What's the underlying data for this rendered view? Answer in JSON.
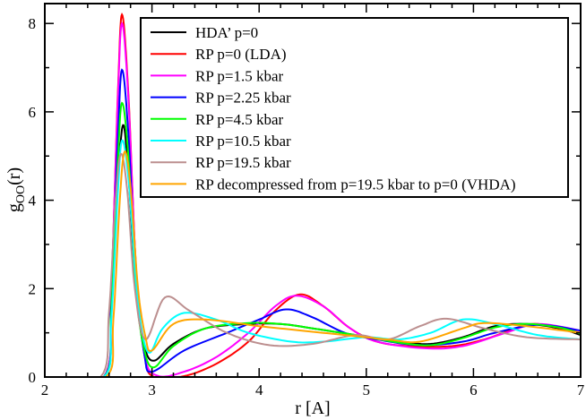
{
  "chart_data": {
    "type": "line",
    "xlabel": "r [A]",
    "ylabel_main": "g",
    "ylabel_sub": "OO",
    "ylabel_tail": "(r)",
    "xlim": [
      2,
      7
    ],
    "ylim": [
      0,
      8.45
    ],
    "xticks": [
      2,
      3,
      4,
      5,
      6,
      7
    ],
    "yticks": [
      0,
      2,
      4,
      6,
      8
    ],
    "grid": false,
    "legend_position": "top-right",
    "series": [
      {
        "name": "HDA’ p=0",
        "color": "#000000",
        "x": [
          2.0,
          2.55,
          2.62,
          2.68,
          2.73,
          2.78,
          2.85,
          2.93,
          3.02,
          3.2,
          3.5,
          3.9,
          4.2,
          4.5,
          4.9,
          5.3,
          5.6,
          5.9,
          6.2,
          6.5,
          6.8,
          7.0
        ],
        "y": [
          0,
          0,
          1.4,
          4.3,
          5.7,
          4.6,
          2.0,
          0.7,
          0.37,
          0.75,
          1.1,
          1.2,
          1.2,
          1.1,
          0.95,
          0.8,
          0.75,
          0.9,
          1.15,
          1.2,
          1.1,
          0.95
        ]
      },
      {
        "name": "RP p=0 (LDA)",
        "color": "#ff0000",
        "x": [
          2.0,
          2.55,
          2.62,
          2.68,
          2.72,
          2.78,
          2.85,
          2.93,
          3.02,
          3.3,
          3.6,
          3.9,
          4.15,
          4.38,
          4.6,
          4.85,
          5.1,
          5.4,
          5.8,
          6.1,
          6.4,
          6.6,
          7.0
        ],
        "y": [
          0,
          0,
          2.0,
          6.3,
          8.2,
          6.4,
          2.5,
          0.5,
          0.0,
          0.02,
          0.3,
          0.8,
          1.5,
          1.87,
          1.6,
          1.1,
          0.8,
          0.7,
          0.7,
          0.85,
          1.1,
          1.2,
          1.0
        ]
      },
      {
        "name": "RP p=1.5 kbar",
        "color": "#ff00ff",
        "x": [
          2.0,
          2.55,
          2.62,
          2.68,
          2.72,
          2.78,
          2.85,
          2.93,
          3.05,
          3.3,
          3.6,
          3.9,
          4.15,
          4.35,
          4.6,
          4.85,
          5.1,
          5.55,
          5.9,
          6.3,
          6.6,
          7.0
        ],
        "y": [
          0,
          0,
          2.0,
          6.2,
          8.0,
          6.3,
          2.5,
          0.5,
          0.03,
          0.12,
          0.45,
          1.0,
          1.6,
          1.84,
          1.6,
          1.1,
          0.8,
          0.65,
          0.7,
          1.0,
          1.2,
          1.05
        ]
      },
      {
        "name": "RP p=2.25 kbar",
        "color": "#0000ff",
        "x": [
          2.0,
          2.55,
          2.62,
          2.68,
          2.72,
          2.78,
          2.85,
          2.93,
          3.0,
          3.3,
          3.7,
          4.0,
          4.25,
          4.5,
          4.8,
          5.1,
          5.5,
          5.9,
          6.2,
          6.6,
          7.0
        ],
        "y": [
          0,
          0,
          1.7,
          5.3,
          6.95,
          5.5,
          2.2,
          0.5,
          0.12,
          0.6,
          1.0,
          1.3,
          1.53,
          1.35,
          1.0,
          0.85,
          0.72,
          0.8,
          1.0,
          1.18,
          1.05
        ]
      },
      {
        "name": "RP p=4.5 kbar",
        "color": "#00ff00",
        "x": [
          2.0,
          2.55,
          2.62,
          2.68,
          2.72,
          2.78,
          2.85,
          2.93,
          3.02,
          3.2,
          3.5,
          3.9,
          4.2,
          4.5,
          4.9,
          5.3,
          5.6,
          5.9,
          6.2,
          6.5,
          6.8,
          7.0
        ],
        "y": [
          0,
          0,
          1.5,
          4.8,
          6.2,
          5.0,
          2.0,
          0.6,
          0.22,
          0.7,
          1.1,
          1.22,
          1.2,
          1.1,
          0.95,
          0.78,
          0.72,
          0.88,
          1.12,
          1.2,
          1.12,
          0.98
        ]
      },
      {
        "name": "RP p=10.5 kbar",
        "color": "#00ffff",
        "x": [
          2.0,
          2.55,
          2.62,
          2.68,
          2.72,
          2.78,
          2.85,
          2.91,
          2.98,
          3.1,
          3.3,
          3.6,
          3.9,
          4.3,
          4.6,
          5.0,
          5.3,
          5.6,
          5.9,
          6.2,
          6.6,
          7.0
        ],
        "y": [
          0,
          0,
          1.3,
          4.1,
          5.35,
          4.5,
          2.2,
          1.0,
          0.55,
          1.1,
          1.45,
          1.3,
          1.0,
          0.8,
          0.8,
          0.9,
          0.85,
          1.0,
          1.3,
          1.2,
          0.95,
          0.85
        ]
      },
      {
        "name": "RP p=19.5 kbar",
        "color": "#bc8f8f",
        "x": [
          2.0,
          2.52,
          2.6,
          2.66,
          2.71,
          2.77,
          2.84,
          2.94,
          3.12,
          3.35,
          3.7,
          4.1,
          4.5,
          4.9,
          5.2,
          5.5,
          5.75,
          6.1,
          6.5,
          7.0
        ],
        "y": [
          0,
          0,
          1.5,
          4.0,
          5.05,
          4.2,
          2.0,
          0.85,
          1.8,
          1.5,
          1.0,
          0.72,
          0.75,
          0.95,
          0.85,
          1.15,
          1.32,
          1.1,
          0.9,
          0.85
        ]
      },
      {
        "name": "RP decompressed from p=19.5 kbar to p=0 (VHDA)",
        "color": "#ffa500",
        "x": [
          2.0,
          2.57,
          2.64,
          2.7,
          2.745,
          2.8,
          2.87,
          2.94,
          3.0,
          3.2,
          3.5,
          4.0,
          4.4,
          4.8,
          5.2,
          5.5,
          5.9,
          6.1,
          6.5,
          7.0
        ],
        "y": [
          0,
          0,
          1.3,
          4.0,
          5.1,
          4.3,
          2.0,
          0.9,
          0.6,
          1.2,
          1.3,
          1.15,
          1.05,
          0.95,
          0.85,
          0.8,
          1.1,
          1.22,
          1.15,
          1.0
        ]
      }
    ]
  }
}
